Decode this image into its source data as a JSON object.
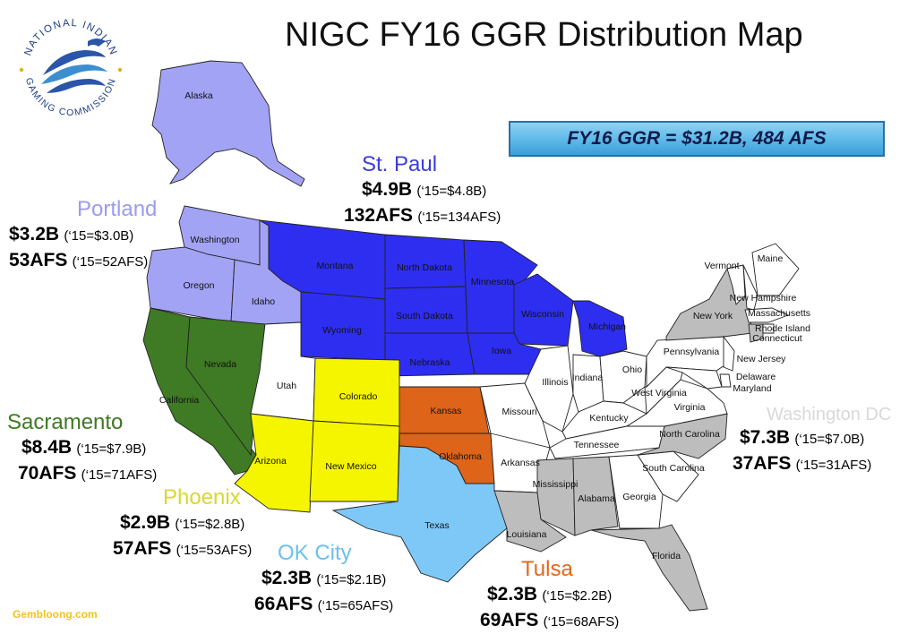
{
  "title": "NIGC FY16 GGR Distribution Map",
  "logo": {
    "ring_text_top": "NATIONAL INDIAN",
    "ring_text_bottom": "GAMING COMMISSION"
  },
  "banner": "FY16 GGR = $31.2B, 484 AFS",
  "watermark": "Gembloong.com",
  "regions": {
    "portland": {
      "name": "Portland",
      "color": "#9b9bf2",
      "ggr": "$3.2B",
      "ggr_prev": "(‘15=$3.0B)",
      "afs": "53AFS",
      "afs_prev": "(‘15=52AFS)"
    },
    "stpaul": {
      "name": "St. Paul",
      "color": "#3b3bdf",
      "ggr": "$4.9B",
      "ggr_prev": "(‘15=$4.8B)",
      "afs": "132AFS",
      "afs_prev": "(‘15=134AFS)"
    },
    "sacramento": {
      "name": "Sacramento",
      "color": "#3d7a22",
      "ggr": "$8.4B",
      "ggr_prev": "(‘15=$7.9B)",
      "afs": "70AFS",
      "afs_prev": "(‘15=71AFS)"
    },
    "phoenix": {
      "name": "Phoenix",
      "color": "#d8d830",
      "ggr": "$2.9B",
      "ggr_prev": "(‘15=$2.8B)",
      "afs": "57AFS",
      "afs_prev": "(‘15=53AFS)"
    },
    "okcity": {
      "name": "OK City",
      "color": "#6cc0ef",
      "ggr": "$2.3B",
      "ggr_prev": "(‘15=$2.1B)",
      "afs": "66AFS",
      "afs_prev": "(‘15=65AFS)"
    },
    "tulsa": {
      "name": "Tulsa",
      "color": "#e0681e",
      "ggr": "$2.3B",
      "ggr_prev": "(‘15=$2.2B)",
      "afs": "69AFS",
      "afs_prev": "(‘15=68AFS)"
    },
    "washington": {
      "name": "Washington DC",
      "color": "#d9d9d9",
      "ggr": "$7.3B",
      "ggr_prev": "(‘15=$7.0B)",
      "afs": "37AFS",
      "afs_prev": "(‘15=31AFS)"
    }
  },
  "state_colors": {
    "portland": "#a3a3f5",
    "stpaul": "#2e2ef0",
    "sacramento": "#3f7a24",
    "phoenix": "#f5f500",
    "okcity": "#7ec8f8",
    "tulsa": "#dd6418",
    "washington": "#bdbdbd",
    "none": "#ffffff"
  },
  "states": [
    "Alaska",
    "Washington",
    "Oregon",
    "Idaho",
    "Montana",
    "Wyoming",
    "North Dakota",
    "South Dakota",
    "Nebraska",
    "Minnesota",
    "Wisconsin",
    "Michigan",
    "Iowa",
    "California",
    "Nevada",
    "Utah",
    "Colorado",
    "Arizona",
    "New Mexico",
    "Kansas",
    "Oklahoma",
    "Texas",
    "Missouri",
    "Arkansas",
    "Louisiana",
    "Illinois",
    "Indiana",
    "Ohio",
    "Kentucky",
    "Tennessee",
    "Mississippi",
    "Alabama",
    "Georgia",
    "Florida",
    "South Carolina",
    "North Carolina",
    "Virginia",
    "West Virginia",
    "Pennsylvania",
    "New York",
    "Vermont",
    "Maine",
    "New Hampshire",
    "Massachusetts",
    "Rhode Island",
    "Connecticut",
    "New Jersey",
    "Delaware",
    "Maryland"
  ]
}
